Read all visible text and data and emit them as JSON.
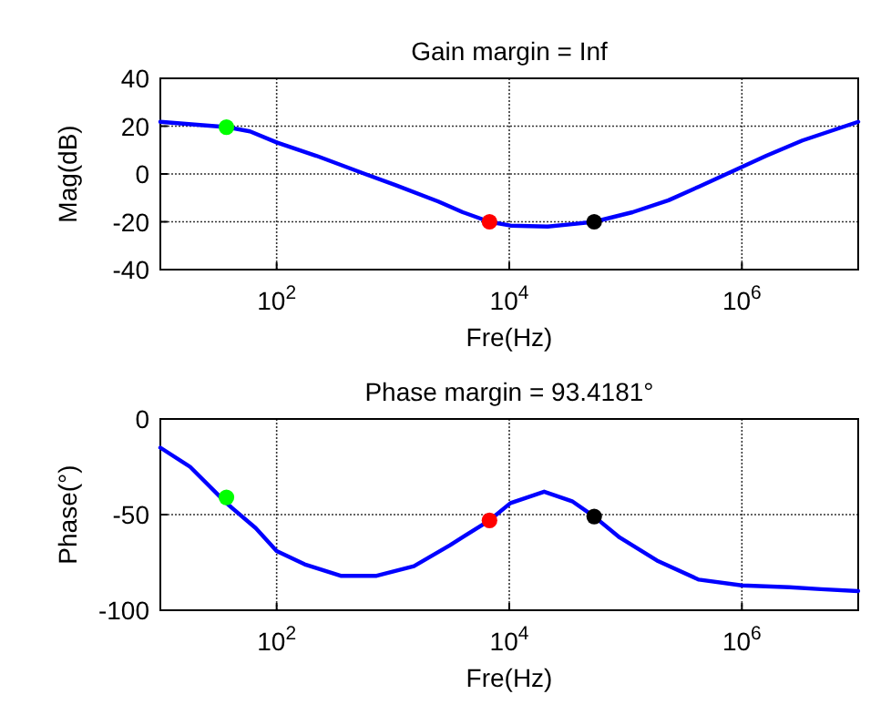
{
  "chart_data": [
    {
      "type": "line",
      "title": "Gain margin = Inf",
      "xlabel": "Fre(Hz)",
      "ylabel": "Mag(dB)",
      "log": "x",
      "grid": true,
      "xlim": [
        10,
        10000000
      ],
      "xticks": [
        {
          "value": 100,
          "label": "10$^{2}$"
        },
        {
          "value": 10000,
          "label": "10$^{4}$"
        },
        {
          "value": 1000000,
          "label": "10$^{6}$"
        }
      ],
      "ylim": [
        -40,
        40
      ],
      "yticks": [
        -40,
        -20,
        0,
        20,
        40
      ],
      "series": [
        {
          "color": "#0000ff",
          "line_style": "solid",
          "x": [
            10,
            22,
            37,
            59,
            100,
            219,
            575,
            1047,
            2455,
            3981,
            6761,
            10233,
            21380,
            34674,
            53703,
            114815,
            234423,
            426580,
            776247,
            1621810,
            3311311,
            10000000
          ],
          "values": [
            21.8,
            20.5,
            19.6,
            17.8,
            13.2,
            7.6,
            0,
            -4.6,
            -11.5,
            -16,
            -20,
            -21.6,
            -22,
            -21,
            -20,
            -16,
            -11,
            -5.3,
            0.5,
            7.6,
            14,
            21.8
          ]
        },
        {
          "type": "scatter",
          "color": "#00ff00",
          "marker": "circle",
          "x": [
            37
          ],
          "values": [
            19.6
          ]
        },
        {
          "type": "scatter",
          "color": "#ff0000",
          "marker": "circle",
          "x": [
            6761
          ],
          "values": [
            -20
          ]
        },
        {
          "type": "scatter",
          "color": "#000000",
          "marker": "circle",
          "x": [
            53703
          ],
          "values": [
            -20
          ]
        }
      ]
    },
    {
      "type": "line",
      "title": "Phase margin = 93.4181°",
      "xlabel": "Fre(Hz)",
      "ylabel": "Phase(°)",
      "log": "x",
      "grid": true,
      "xlim": [
        10,
        10000000
      ],
      "xticks": [
        {
          "value": 100,
          "label": "10$^{2}$"
        },
        {
          "value": 10000,
          "label": "10$^{4}$"
        },
        {
          "value": 1000000,
          "label": "10$^{6}$"
        }
      ],
      "ylim": [
        -100,
        0
      ],
      "yticks": [
        -100,
        -50,
        0
      ],
      "series": [
        {
          "color": "#0000ff",
          "line_style": "solid",
          "x": [
            10,
            18,
            37,
            66,
            100,
            174,
            355,
            724,
            1514,
            3090,
            6761,
            10233,
            19953,
            34674,
            53703,
            89125,
            186209,
            426580,
            1000000,
            2570396,
            4786301,
            10000000
          ],
          "values": [
            -15,
            -25,
            -44,
            -57,
            -69,
            -76,
            -82,
            -82,
            -77,
            -66,
            -53,
            -44,
            -38,
            -43,
            -51,
            -62,
            -74,
            -84,
            -87,
            -88,
            -89,
            -90
          ]
        },
        {
          "type": "scatter",
          "color": "#00ff00",
          "marker": "circle",
          "x": [
            37
          ],
          "values": [
            -41
          ]
        },
        {
          "type": "scatter",
          "color": "#ff0000",
          "marker": "circle",
          "x": [
            6761
          ],
          "values": [
            -53
          ]
        },
        {
          "type": "scatter",
          "color": "#000000",
          "marker": "circle",
          "x": [
            53703
          ],
          "values": [
            -51
          ]
        }
      ]
    }
  ]
}
